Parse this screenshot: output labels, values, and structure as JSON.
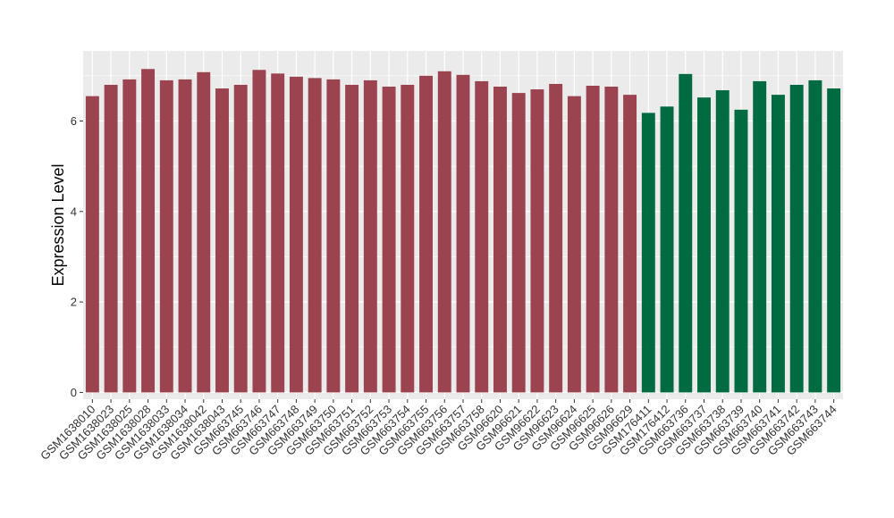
{
  "chart_data": {
    "type": "bar",
    "title": "",
    "xlabel": "",
    "ylabel": "Expression Level",
    "ylim": [
      -0.15,
      7.55
    ],
    "yticks": [
      0,
      2,
      4,
      6
    ],
    "grid": true,
    "legend": "none",
    "colors": {
      "group_a": "#9B4450",
      "group_b": "#006A40",
      "panel": "#EBEBEB",
      "gridline": "#FFFFFF"
    },
    "categories": [
      "GSM1638010",
      "GSM1638023",
      "GSM1638025",
      "GSM1638028",
      "GSM1638033",
      "GSM1638034",
      "GSM1638042",
      "GSM1638043",
      "GSM663745",
      "GSM663746",
      "GSM663747",
      "GSM663748",
      "GSM663749",
      "GSM663750",
      "GSM663751",
      "GSM663752",
      "GSM663753",
      "GSM663754",
      "GSM663755",
      "GSM663756",
      "GSM663757",
      "GSM663758",
      "GSM96620",
      "GSM96621",
      "GSM96622",
      "GSM96623",
      "GSM96624",
      "GSM96625",
      "GSM96626",
      "GSM96629",
      "GSM176411",
      "GSM176412",
      "GSM663736",
      "GSM663737",
      "GSM663738",
      "GSM663739",
      "GSM663740",
      "GSM663741",
      "GSM663742",
      "GSM663743",
      "GSM663744"
    ],
    "values": [
      6.55,
      6.8,
      6.92,
      7.15,
      6.9,
      6.92,
      7.08,
      6.72,
      6.8,
      7.13,
      7.05,
      6.98,
      6.95,
      6.92,
      6.8,
      6.9,
      6.76,
      6.8,
      7.0,
      7.1,
      7.02,
      6.88,
      6.76,
      6.62,
      6.7,
      6.82,
      6.55,
      6.78,
      6.76,
      6.58,
      6.18,
      6.32,
      7.04,
      6.52,
      6.68,
      6.25,
      6.88,
      6.58,
      6.8,
      6.9,
      6.72
    ],
    "groups": [
      "a",
      "a",
      "a",
      "a",
      "a",
      "a",
      "a",
      "a",
      "a",
      "a",
      "a",
      "a",
      "a",
      "a",
      "a",
      "a",
      "a",
      "a",
      "a",
      "a",
      "a",
      "a",
      "a",
      "a",
      "a",
      "a",
      "a",
      "a",
      "a",
      "a",
      "b",
      "b",
      "b",
      "b",
      "b",
      "b",
      "b",
      "b",
      "b",
      "b",
      "b"
    ]
  }
}
